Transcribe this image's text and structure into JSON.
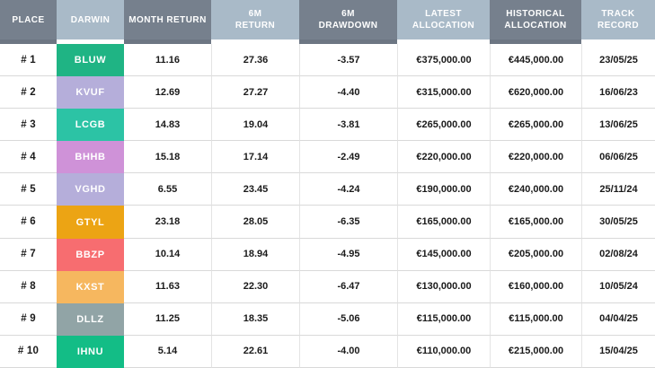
{
  "table": {
    "title": "darwin-leaderboard-table",
    "columns": [
      {
        "key": "place",
        "label": "PLACE",
        "variant": "dark"
      },
      {
        "key": "darwin",
        "label": "DARWIN",
        "variant": "light"
      },
      {
        "key": "month_return",
        "label": "MONTH RETURN",
        "variant": "dark"
      },
      {
        "key": "six_m_return",
        "label": "6M\nRETURN",
        "variant": "light"
      },
      {
        "key": "six_m_drawdown",
        "label": "6M\nDRAWDOWN",
        "variant": "dark"
      },
      {
        "key": "latest_allocation",
        "label": "LATEST\nALLOCATION",
        "variant": "light"
      },
      {
        "key": "historical_allocation",
        "label": "HISTORICAL\nALLOCATION",
        "variant": "dark"
      },
      {
        "key": "track_record",
        "label": "TRACK\nRECORD",
        "variant": "light"
      }
    ],
    "rows": [
      {
        "place": "# 1",
        "darwin": "BLUW",
        "color": "#1fb484",
        "month_return": "11.16",
        "six_m_return": "27.36",
        "six_m_drawdown": "-3.57",
        "latest_allocation": "€375,000.00",
        "historical_allocation": "€445,000.00",
        "track_record": "23/05/25"
      },
      {
        "place": "# 2",
        "darwin": "KVUF",
        "color": "#b5aeda",
        "month_return": "12.69",
        "six_m_return": "27.27",
        "six_m_drawdown": "-4.40",
        "latest_allocation": "€315,000.00",
        "historical_allocation": "€620,000.00",
        "track_record": "16/06/23"
      },
      {
        "place": "# 3",
        "darwin": "LCGB",
        "color": "#2cc3a5",
        "month_return": "14.83",
        "six_m_return": "19.04",
        "six_m_drawdown": "-3.81",
        "latest_allocation": "€265,000.00",
        "historical_allocation": "€265,000.00",
        "track_record": "13/06/25"
      },
      {
        "place": "# 4",
        "darwin": "BHHB",
        "color": "#cf92d8",
        "month_return": "15.18",
        "six_m_return": "17.14",
        "six_m_drawdown": "-2.49",
        "latest_allocation": "€220,000.00",
        "historical_allocation": "€220,000.00",
        "track_record": "06/06/25"
      },
      {
        "place": "# 5",
        "darwin": "VGHD",
        "color": "#b5aeda",
        "month_return": "6.55",
        "six_m_return": "23.45",
        "six_m_drawdown": "-4.24",
        "latest_allocation": "€190,000.00",
        "historical_allocation": "€240,000.00",
        "track_record": "25/11/24"
      },
      {
        "place": "# 6",
        "darwin": "GTYL",
        "color": "#eca414",
        "month_return": "23.18",
        "six_m_return": "28.05",
        "six_m_drawdown": "-6.35",
        "latest_allocation": "€165,000.00",
        "historical_allocation": "€165,000.00",
        "track_record": "30/05/25"
      },
      {
        "place": "# 7",
        "darwin": "BBZP",
        "color": "#f76d70",
        "month_return": "10.14",
        "six_m_return": "18.94",
        "six_m_drawdown": "-4.95",
        "latest_allocation": "€145,000.00",
        "historical_allocation": "€205,000.00",
        "track_record": "02/08/24"
      },
      {
        "place": "# 8",
        "darwin": "KXST",
        "color": "#f6b75f",
        "month_return": "11.63",
        "six_m_return": "22.30",
        "six_m_drawdown": "-6.47",
        "latest_allocation": "€130,000.00",
        "historical_allocation": "€160,000.00",
        "track_record": "10/05/24"
      },
      {
        "place": "# 9",
        "darwin": "DLLZ",
        "color": "#91a4a6",
        "month_return": "11.25",
        "six_m_return": "18.35",
        "six_m_drawdown": "-5.06",
        "latest_allocation": "€115,000.00",
        "historical_allocation": "€115,000.00",
        "track_record": "04/04/25"
      },
      {
        "place": "# 10",
        "darwin": "IHNU",
        "color": "#13bd86",
        "month_return": "5.14",
        "six_m_return": "22.61",
        "six_m_drawdown": "-4.00",
        "latest_allocation": "€110,000.00",
        "historical_allocation": "€215,000.00",
        "track_record": "15/04/25"
      }
    ]
  },
  "colors": {
    "header_dark": "#76808d",
    "header_dark_strip": "#6d7683",
    "header_light": "#a9bac8",
    "grid_line": "#e4e4e4",
    "row_line": "#d9d9d9",
    "body_text": "#1a1a1a",
    "header_text": "#ffffff"
  }
}
